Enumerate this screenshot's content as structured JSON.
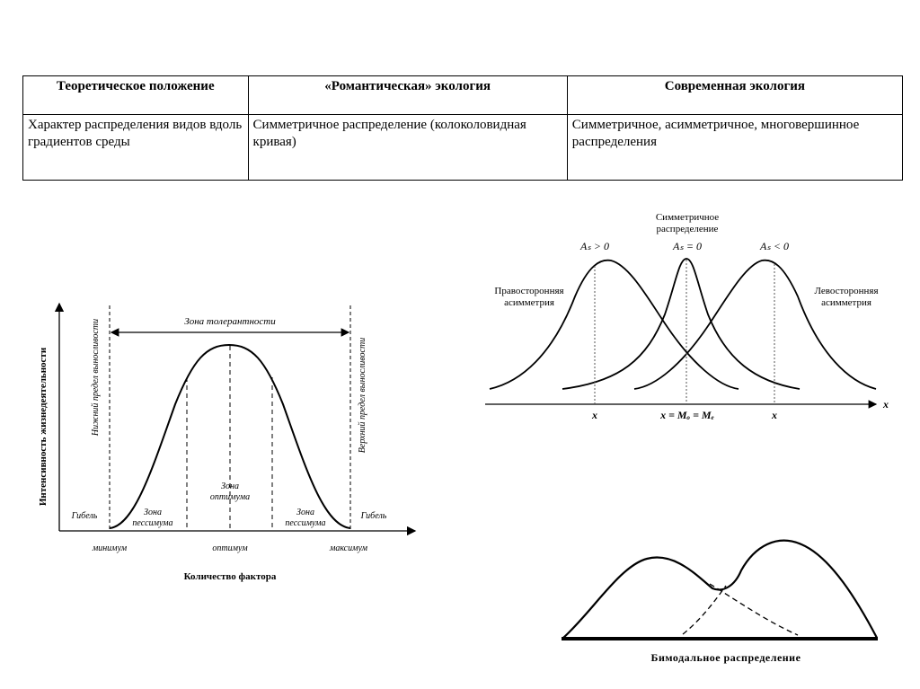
{
  "table": {
    "headers": [
      "Теоретическое положение",
      "«Романтическая» экология",
      "Современная экология"
    ],
    "row": [
      "Характер распределения видов вдоль градиентов среды",
      "Симметричное распределение (колоколовидная кривая)",
      "Симметричное, асимметричное, многовершинное распределения"
    ]
  },
  "tolerance_figure": {
    "y_label": "Интенсивность жизнедеятельности",
    "x_label": "Количество фактора",
    "zone_tolerance": "Зона толерантности",
    "lower_limit": "Нижний предел выносливости",
    "upper_limit": "Верхний предел выносливости",
    "death_left": "Гибель",
    "death_right": "Гибель",
    "pessimum_left": [
      "Зона",
      "пессимума"
    ],
    "optimum_zone": [
      "Зона",
      "оптимума"
    ],
    "pessimum_right": [
      "Зона",
      "пессимума"
    ],
    "tick_min": "минимум",
    "tick_opt": "оптимум",
    "tick_max": "максимум"
  },
  "asymmetry_figure": {
    "sym_title": [
      "Симметричное",
      "распределение"
    ],
    "right_asym": [
      "Правосторонняя",
      "асимметрия"
    ],
    "left_asym": [
      "Левосторонняя",
      "асимметрия"
    ],
    "as_pos": "Aₛ > 0",
    "as_zero": "Aₛ = 0",
    "as_neg": "Aₛ < 0",
    "x_left": "x",
    "x_mid": "x = Mₒ = Mₑ",
    "x_right": "x",
    "axis_x": "x"
  },
  "bimodal_figure": {
    "caption": "Бимодальное распределение"
  }
}
